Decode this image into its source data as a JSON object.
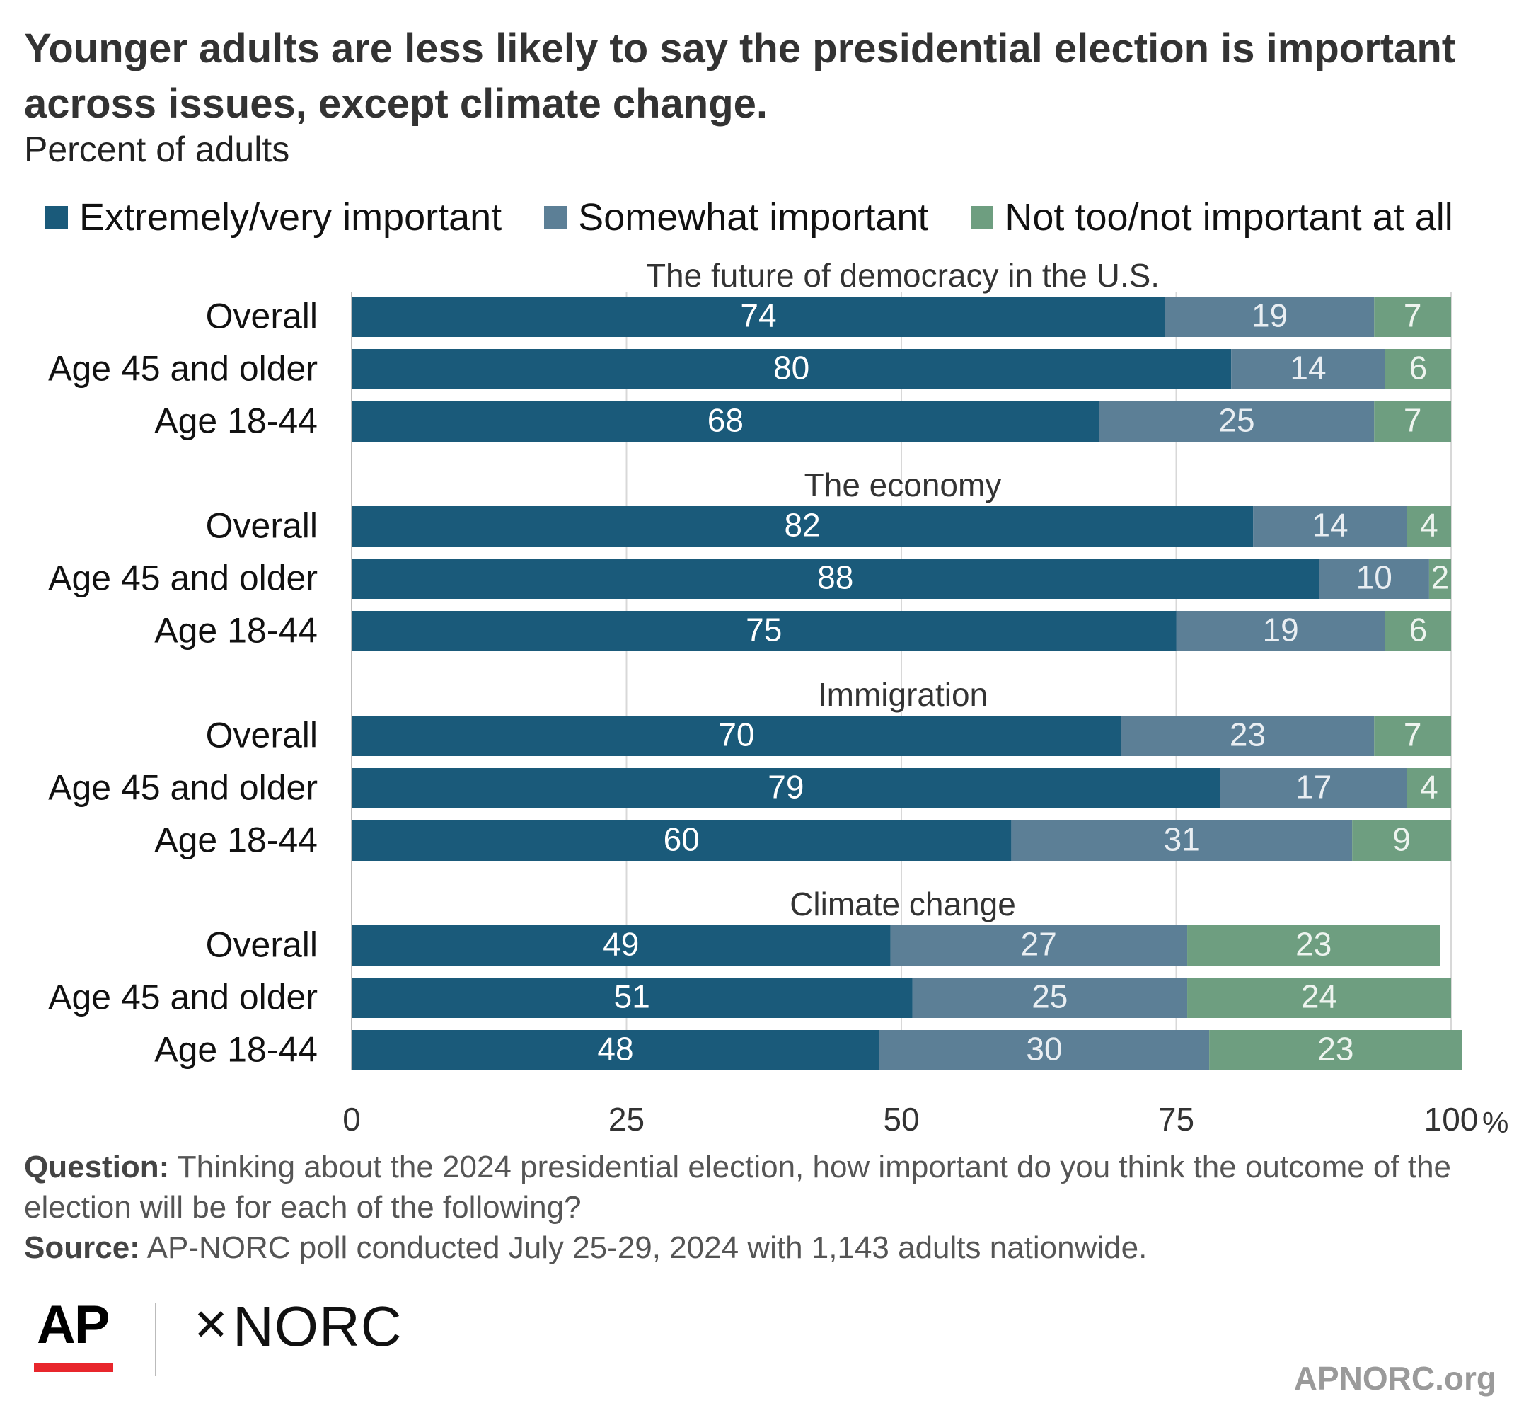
{
  "title": "Younger adults are less likely to say the presidential election is important across issues, except climate change.",
  "subtitle": "Percent of adults",
  "legend": [
    {
      "label": "Extremely/very important",
      "color": "#1a5a7a"
    },
    {
      "label": "Somewhat important",
      "color": "#5c7f96"
    },
    {
      "label": "Not too/not important at all",
      "color": "#6e9e80"
    }
  ],
  "chart_data": {
    "type": "bar",
    "orientation": "horizontal",
    "stacked": true,
    "xlim": [
      0,
      100
    ],
    "x_ticks": [
      "0",
      "25",
      "50",
      "75",
      "100"
    ],
    "x_unit": "%",
    "grid": true,
    "series": [
      {
        "name": "Extremely/very important",
        "color": "#1a5a7a"
      },
      {
        "name": "Somewhat important",
        "color": "#5c7f96"
      },
      {
        "name": "Not too/not important at all",
        "color": "#6e9e80"
      }
    ],
    "groups": [
      {
        "title": "The future of democracy in the U.S.",
        "rows": [
          {
            "label": "Overall",
            "values": [
              74,
              19,
              7
            ]
          },
          {
            "label": "Age 45 and older",
            "values": [
              80,
              14,
              6
            ]
          },
          {
            "label": "Age 18-44",
            "values": [
              68,
              25,
              7
            ]
          }
        ]
      },
      {
        "title": "The economy",
        "rows": [
          {
            "label": "Overall",
            "values": [
              82,
              14,
              4
            ]
          },
          {
            "label": "Age 45 and older",
            "values": [
              88,
              10,
              2
            ]
          },
          {
            "label": "Age 18-44",
            "values": [
              75,
              19,
              6
            ]
          }
        ]
      },
      {
        "title": "Immigration",
        "rows": [
          {
            "label": "Overall",
            "values": [
              70,
              23,
              7
            ]
          },
          {
            "label": "Age 45 and older",
            "values": [
              79,
              17,
              4
            ]
          },
          {
            "label": "Age 18-44",
            "values": [
              60,
              31,
              9
            ]
          }
        ]
      },
      {
        "title": "Climate change",
        "rows": [
          {
            "label": "Overall",
            "values": [
              49,
              27,
              23
            ]
          },
          {
            "label": "Age 45 and older",
            "values": [
              51,
              25,
              24
            ]
          },
          {
            "label": "Age 18-44",
            "values": [
              48,
              30,
              23
            ]
          }
        ]
      }
    ]
  },
  "footer": {
    "question_label": "Question:",
    "question_text": " Thinking about the 2024 presidential election, how important do you think the outcome of the election will be for each of the following?",
    "source_label": "Source:",
    "source_text": " AP-NORC poll conducted July 25-29, 2024 with 1,143 adults nationwide."
  },
  "logos": {
    "ap": "AP",
    "norc": "NORC",
    "norc_mark": "✕"
  },
  "url": "APNORC.org"
}
